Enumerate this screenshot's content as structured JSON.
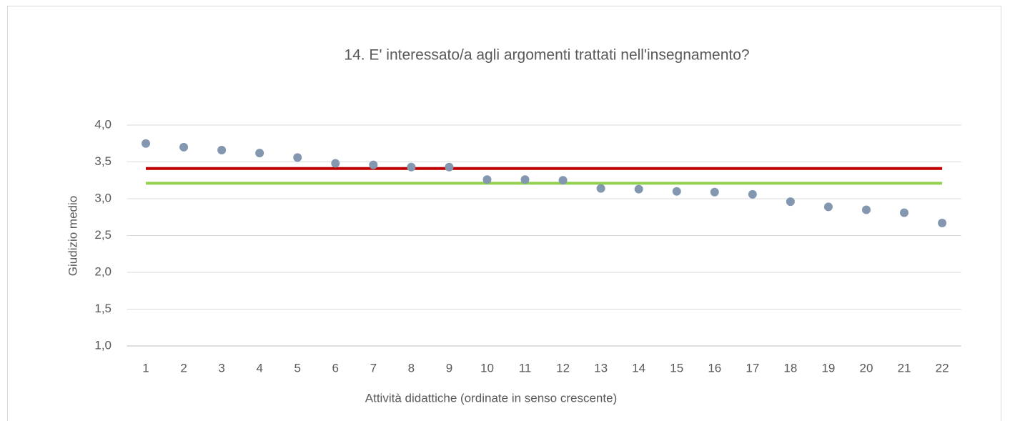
{
  "chart_data": {
    "type": "scatter",
    "title": "14. E' interessato/a agli argomenti trattati nell'insegnamento?",
    "x_label": "Attività didattiche (ordinate in senso crescente)",
    "y_label": "Giudizio medio",
    "categories": [
      "1",
      "2",
      "3",
      "4",
      "5",
      "6",
      "7",
      "8",
      "9",
      "10",
      "11",
      "12",
      "13",
      "14",
      "15",
      "16",
      "17",
      "18",
      "19",
      "20",
      "21",
      "22"
    ],
    "values": [
      3.75,
      3.7,
      3.66,
      3.62,
      3.56,
      3.48,
      3.46,
      3.43,
      3.43,
      3.26,
      3.26,
      3.25,
      3.14,
      3.13,
      3.1,
      3.09,
      3.06,
      2.96,
      2.89,
      2.85,
      2.81,
      2.67
    ],
    "color": "#8497b0",
    "reference_lines": [
      {
        "value": 3.41,
        "color": "#c00000"
      },
      {
        "value": 3.21,
        "color": "#92d050"
      }
    ],
    "ylim": [
      1,
      4
    ],
    "yticks": [
      {
        "value": 1,
        "label": "1,0"
      },
      {
        "value": 1.5,
        "label": "1,5"
      },
      {
        "value": 2,
        "label": "2,0"
      },
      {
        "value": 2.5,
        "label": "2,5"
      },
      {
        "value": 3,
        "label": "3,0"
      },
      {
        "value": 3.5,
        "label": "3,5"
      },
      {
        "value": 4,
        "label": "4,0"
      }
    ],
    "grid": true
  }
}
